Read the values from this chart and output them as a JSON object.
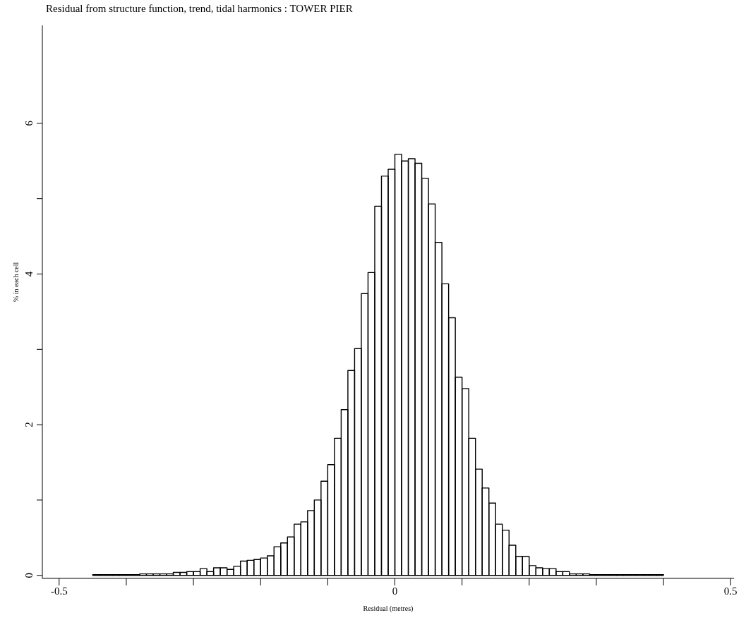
{
  "chart_data": {
    "type": "histogram",
    "title": "Residual from structure function, trend, tidal harmonics : TOWER PIER",
    "xlabel": "Residual (metres)",
    "ylabel": "% in each cell",
    "bins": [
      -0.45,
      -0.44,
      -0.43,
      -0.42,
      -0.41,
      -0.4,
      -0.39,
      -0.38,
      -0.37,
      -0.36,
      -0.35,
      -0.34,
      -0.33,
      -0.32,
      -0.31,
      -0.3,
      -0.29,
      -0.28,
      -0.27,
      -0.26,
      -0.25,
      -0.24,
      -0.23,
      -0.22,
      -0.21,
      -0.2,
      -0.19,
      -0.18,
      -0.17,
      -0.16,
      -0.15,
      -0.14,
      -0.13,
      -0.12,
      -0.11,
      -0.1,
      -0.09,
      -0.08,
      -0.07,
      -0.06,
      -0.05,
      -0.04,
      -0.03,
      -0.02,
      -0.01,
      0,
      0.01,
      0.02,
      0.03,
      0.04,
      0.05,
      0.06,
      0.07,
      0.08,
      0.09,
      0.1,
      0.11,
      0.12,
      0.13,
      0.14,
      0.15,
      0.16,
      0.17,
      0.18,
      0.19,
      0.2,
      0.21,
      0.22,
      0.23,
      0.24,
      0.25,
      0.26,
      0.27,
      0.28,
      0.29,
      0.3,
      0.31,
      0.32,
      0.33,
      0.34,
      0.35,
      0.36,
      0.37,
      0.38,
      0.39,
      0.4
    ],
    "values": [
      0.01,
      0.01,
      0.01,
      0.01,
      0.01,
      0.01,
      0.01,
      0.02,
      0.02,
      0.02,
      0.02,
      0.02,
      0.04,
      0.04,
      0.05,
      0.05,
      0.09,
      0.05,
      0.1,
      0.1,
      0.08,
      0.12,
      0.19,
      0.2,
      0.21,
      0.23,
      0.26,
      0.38,
      0.43,
      0.51,
      0.68,
      0.71,
      0.86,
      1.0,
      1.25,
      1.47,
      1.82,
      2.2,
      2.72,
      3.01,
      3.74,
      4.02,
      4.9,
      5.3,
      5.39,
      5.59,
      5.5,
      5.53,
      5.47,
      5.27,
      4.93,
      4.42,
      3.87,
      3.42,
      2.63,
      2.48,
      1.82,
      1.41,
      1.16,
      0.96,
      0.68,
      0.6,
      0.4,
      0.25,
      0.25,
      0.13,
      0.1,
      0.09,
      0.09,
      0.05,
      0.05,
      0.02,
      0.02,
      0.02,
      0.01,
      0.01,
      0.01,
      0.01,
      0.01,
      0.01,
      0.01,
      0.01,
      0.01,
      0.01,
      0.01
    ],
    "color": "#000000",
    "xlim": [
      -0.525,
      0.505
    ],
    "xticks": [
      -0.5,
      {
        "value": -0.4,
        "label": null
      },
      {
        "value": -0.3,
        "label": null
      },
      {
        "value": -0.2,
        "label": null
      },
      {
        "value": -0.1,
        "label": null
      },
      0,
      {
        "value": 0.1,
        "label": null
      },
      {
        "value": 0.2,
        "label": null
      },
      {
        "value": 0.3,
        "label": null
      },
      {
        "value": 0.4,
        "label": null
      },
      0.5
    ],
    "ylim": [
      -0.04,
      7.3
    ],
    "yticks": [
      0,
      {
        "value": 1,
        "label": null
      },
      2,
      {
        "value": 3,
        "label": null
      },
      4,
      {
        "value": 5,
        "label": null
      },
      6
    ]
  }
}
